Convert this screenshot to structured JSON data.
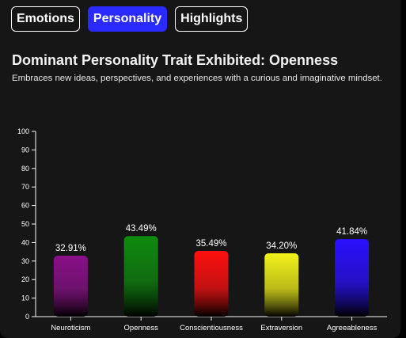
{
  "tabs": [
    {
      "label": "Emotions",
      "active": false
    },
    {
      "label": "Personality",
      "active": true
    },
    {
      "label": "Highlights",
      "active": false
    }
  ],
  "heading": "Dominant Personality Trait Exhibited: Openness",
  "description": "Embraces new ideas, perspectives, and experiences with a curious and imaginative mindset.",
  "colors": {
    "active_tab": "#2a2aff",
    "neuroticism": "#8a1088",
    "openness": "#0f8a0f",
    "conscientiousness": "#ff1010",
    "extraversion": "#f2f21a",
    "agreeableness": "#2a10ff"
  },
  "chart_data": {
    "type": "bar",
    "categories": [
      "Neuroticism",
      "Openness",
      "Conscientiousness",
      "Extraversion",
      "Agreeableness"
    ],
    "values": [
      32.91,
      43.49,
      35.49,
      34.2,
      41.84
    ],
    "value_labels": [
      "32.91%",
      "43.49%",
      "35.49%",
      "34.20%",
      "41.84%"
    ],
    "colors": [
      "#8a1088",
      "#0f8a0f",
      "#ff1010",
      "#f2f21a",
      "#2a10ff"
    ],
    "ylim": [
      0,
      100
    ],
    "yticks": [
      0,
      10,
      20,
      30,
      40,
      50,
      60,
      70,
      80,
      90,
      100
    ],
    "xlabel": "",
    "ylabel": "",
    "grid": false,
    "legend": "none"
  }
}
